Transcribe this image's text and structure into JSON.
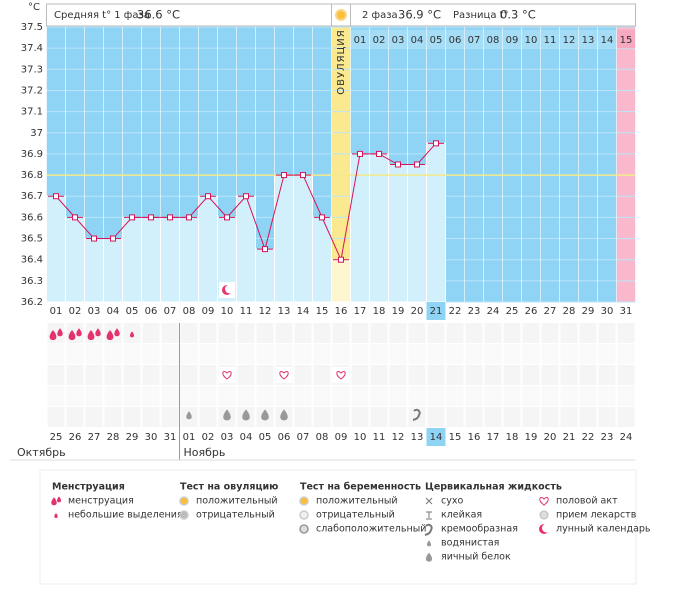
{
  "header": {
    "phase1_label": "Средняя t° 1 фаза",
    "phase1_value": "36.6 °C",
    "phase2_label": "2 фаза",
    "phase2_value": "36.9 °C",
    "diff_label": "Разница t°",
    "diff_value": "0.3 °C"
  },
  "chart_data": {
    "type": "line",
    "y_unit": "°C",
    "color": "#d4145a",
    "categories": [
      "01",
      "02",
      "03",
      "04",
      "05",
      "06",
      "07",
      "08",
      "09",
      "10",
      "11",
      "12",
      "13",
      "14",
      "15",
      "16",
      "17",
      "18",
      "19",
      "20",
      "21",
      "22",
      "23",
      "24",
      "25",
      "26",
      "27",
      "28",
      "29",
      "30",
      "31"
    ],
    "values": [
      36.7,
      36.6,
      36.5,
      36.5,
      36.6,
      36.6,
      36.6,
      36.6,
      36.7,
      36.6,
      36.7,
      36.45,
      36.8,
      36.8,
      36.6,
      36.4,
      36.9,
      36.9,
      36.85,
      36.85,
      36.95,
      null,
      null,
      null,
      null,
      null,
      null,
      null,
      null,
      null,
      null
    ],
    "ylim": [
      36.2,
      37.5
    ],
    "yticks": [
      36.2,
      36.3,
      36.4,
      36.5,
      36.6,
      36.7,
      36.8,
      36.9,
      37,
      37.1,
      37.2,
      37.3,
      37.4,
      37.5
    ],
    "coverline": 36.8,
    "ovulation_label": "ОВУЛЯЦИЯ",
    "ovulation_index": 15,
    "period_end_index": 30,
    "today_index": 20,
    "phase2_days": [
      "01",
      "02",
      "03",
      "04",
      "05",
      "06",
      "07",
      "08",
      "09",
      "10",
      "11",
      "12",
      "13",
      "14",
      "15"
    ],
    "dates": [
      "25",
      "26",
      "27",
      "28",
      "29",
      "30",
      "31",
      "01",
      "02",
      "03",
      "04",
      "05",
      "06",
      "07",
      "08",
      "09",
      "10",
      "11",
      "12",
      "13",
      "14",
      "15",
      "16",
      "17",
      "18",
      "19",
      "20",
      "21",
      "22",
      "23",
      "24"
    ],
    "weekend_indices": [
      1,
      2,
      8,
      9,
      15,
      16,
      22,
      23,
      29,
      30
    ],
    "months": [
      {
        "label": "Октябрь",
        "start": 0
      },
      {
        "label": "Ноябрь",
        "start": 7
      }
    ],
    "symbols": {
      "menstruation": [
        0,
        1,
        2,
        3
      ],
      "spotting": [
        4
      ],
      "sex": [
        9,
        12,
        15
      ],
      "watery": [
        7
      ],
      "egg_white": [
        9,
        10,
        11,
        12
      ],
      "creamy": [
        19
      ],
      "moon": [
        9
      ]
    }
  },
  "legend": [
    {
      "title": "Менструация",
      "items": [
        "менструация",
        "небольшие выделения"
      ]
    },
    {
      "title": "Тест на овуляцию",
      "items": [
        "положительный",
        "отрицательный"
      ]
    },
    {
      "title": "Тест на беременность",
      "items": [
        "положительный",
        "отрицательный",
        "слабоположительный"
      ]
    },
    {
      "title": "Цервикальная жидкость",
      "items": [
        "сухо",
        "клейкая",
        "кремообразная",
        "водянистая",
        "яичный белок"
      ]
    },
    {
      "title": null,
      "items": [
        "половой акт",
        "прием лекарств",
        "лунный календарь"
      ]
    }
  ]
}
